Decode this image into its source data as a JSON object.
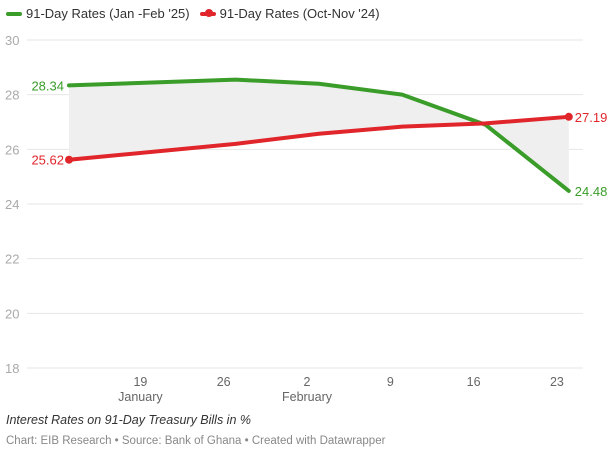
{
  "chart_data": {
    "type": "line",
    "title": "",
    "xlabel": "",
    "ylabel": "",
    "ylim": [
      18,
      30
    ],
    "yticks": [
      18,
      20,
      22,
      24,
      26,
      28,
      30
    ],
    "grid": true,
    "legend_position": "top-left",
    "x": [
      "2025-01-13",
      "2025-01-27",
      "2025-02-03",
      "2025-02-10",
      "2025-02-17",
      "2025-02-24"
    ],
    "xticks": [
      {
        "date": "2025-01-19",
        "label": "19",
        "sublabel": "January"
      },
      {
        "date": "2025-01-26",
        "label": "26",
        "sublabel": ""
      },
      {
        "date": "2025-02-02",
        "label": "2",
        "sublabel": "February"
      },
      {
        "date": "2025-02-09",
        "label": "9",
        "sublabel": ""
      },
      {
        "date": "2025-02-16",
        "label": "16",
        "sublabel": ""
      },
      {
        "date": "2025-02-23",
        "label": "23",
        "sublabel": ""
      }
    ],
    "series": [
      {
        "name": "91-Day Rates (Jan -Feb '25)",
        "color": "#3a9d29",
        "values": [
          28.34,
          28.55,
          28.4,
          28.0,
          26.9,
          24.48
        ],
        "first_label": "28.34",
        "last_label": "24.48"
      },
      {
        "name": "91-Day Rates (Oct-Nov '24)",
        "color": "#e0262b",
        "values": [
          25.62,
          26.2,
          26.57,
          26.83,
          26.95,
          27.19
        ],
        "first_label": "25.62",
        "last_label": "27.19"
      }
    ],
    "range_fill_color": "#efefef"
  },
  "notes": "Interest Rates on 91-Day Treasury Bills in %",
  "credit": "Chart: EIB Research • Source: Bank of Ghana • Created with Datawrapper"
}
